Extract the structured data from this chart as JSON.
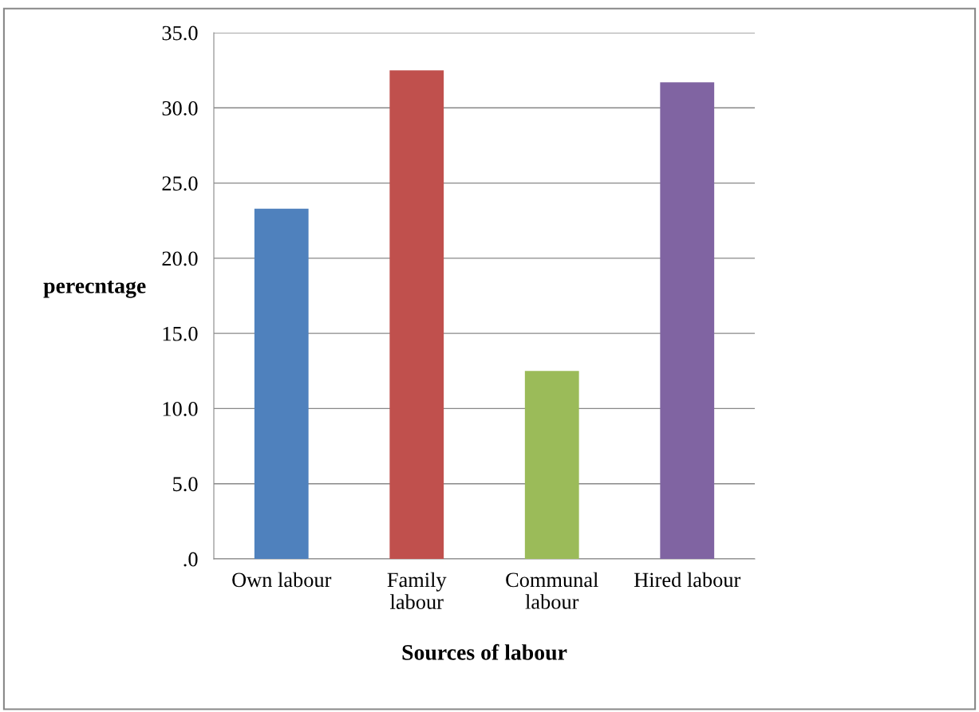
{
  "chart_data": {
    "type": "bar",
    "xlabel": "Sources of labour",
    "ylabel": "perecntage",
    "categories": [
      "Own labour",
      "Family\nlabour",
      "Communal\nlabour",
      "Hired labour"
    ],
    "values": [
      23.3,
      32.5,
      12.5,
      31.7
    ],
    "colors": [
      "#4f81bd",
      "#c0504d",
      "#9bbb59",
      "#8064a2"
    ],
    "ylim": [
      0,
      35
    ],
    "yticks": [
      {
        "value": 0,
        "label": ".0"
      },
      {
        "value": 5,
        "label": "5.0"
      },
      {
        "value": 10,
        "label": "10.0"
      },
      {
        "value": 15,
        "label": "15.0"
      },
      {
        "value": 20,
        "label": "20.0"
      },
      {
        "value": 25,
        "label": "25.0"
      },
      {
        "value": 30,
        "label": "30.0"
      },
      {
        "value": 35,
        "label": "35.0"
      }
    ],
    "grid": "y",
    "legend": false
  }
}
